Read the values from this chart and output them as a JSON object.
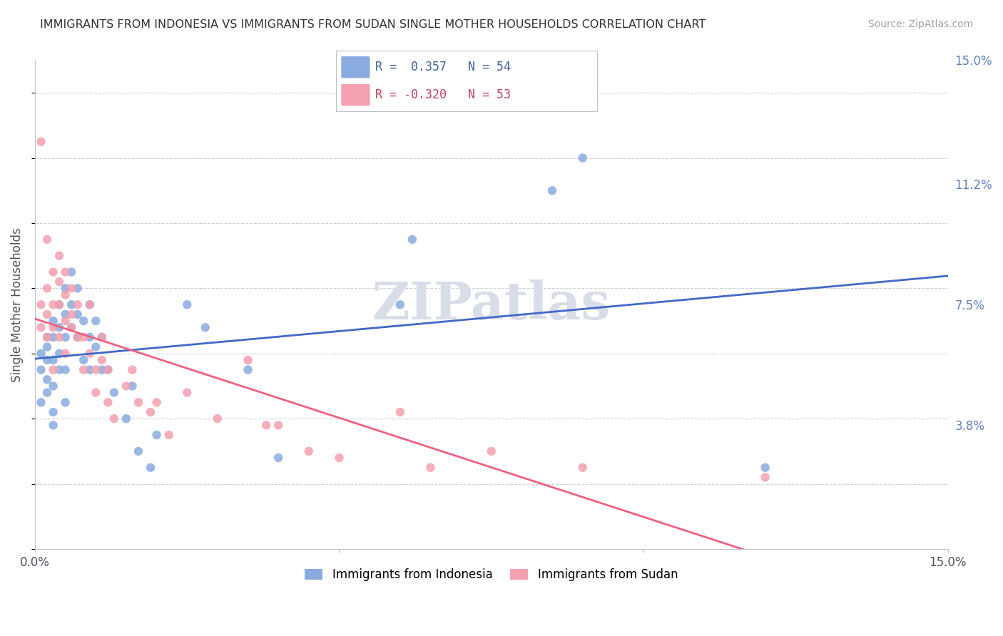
{
  "title": "IMMIGRANTS FROM INDONESIA VS IMMIGRANTS FROM SUDAN SINGLE MOTHER HOUSEHOLDS CORRELATION CHART",
  "source": "Source: ZipAtlas.com",
  "xlabel": "",
  "ylabel": "Single Mother Households",
  "xlim": [
    0,
    0.15
  ],
  "ylim": [
    0,
    0.15
  ],
  "ytick_positions": [
    0.038,
    0.075,
    0.112,
    0.15
  ],
  "ytick_labels": [
    "3.8%",
    "7.5%",
    "11.2%",
    "15.0%"
  ],
  "watermark": "ZIPatlas",
  "indonesia_color": "#8aabdf",
  "sudan_color": "#f4a0b0",
  "indonesia_line_color": "#4169c8",
  "sudan_line_color": "#f06080",
  "background_color": "#ffffff",
  "grid_color": "#d0d0d8",
  "title_color": "#303030",
  "source_color": "#a0a0b0",
  "axis_label_color": "#505060",
  "right_tick_color": "#6080c0",
  "watermark_color": "#d8dde8",
  "r_indonesia": "0.357",
  "n_indonesia": "54",
  "r_sudan": "-0.320",
  "n_sudan": "53",
  "legend_label_indonesia": "Immigrants from Indonesia",
  "legend_label_sudan": "Immigrants from Sudan",
  "indonesia_x": [
    0.001,
    0.001,
    0.001,
    0.002,
    0.002,
    0.002,
    0.002,
    0.002,
    0.003,
    0.003,
    0.003,
    0.003,
    0.003,
    0.003,
    0.004,
    0.004,
    0.004,
    0.004,
    0.005,
    0.005,
    0.005,
    0.005,
    0.005,
    0.006,
    0.006,
    0.006,
    0.007,
    0.007,
    0.007,
    0.008,
    0.008,
    0.009,
    0.009,
    0.009,
    0.01,
    0.01,
    0.011,
    0.011,
    0.012,
    0.013,
    0.015,
    0.016,
    0.017,
    0.019,
    0.02,
    0.025,
    0.028,
    0.035,
    0.04,
    0.06,
    0.062,
    0.085,
    0.09,
    0.12
  ],
  "indonesia_y": [
    0.055,
    0.06,
    0.045,
    0.062,
    0.058,
    0.052,
    0.065,
    0.048,
    0.07,
    0.065,
    0.058,
    0.05,
    0.042,
    0.038,
    0.075,
    0.068,
    0.06,
    0.055,
    0.08,
    0.072,
    0.065,
    0.055,
    0.045,
    0.085,
    0.075,
    0.068,
    0.08,
    0.072,
    0.065,
    0.07,
    0.058,
    0.075,
    0.065,
    0.055,
    0.07,
    0.062,
    0.065,
    0.055,
    0.055,
    0.048,
    0.04,
    0.05,
    0.03,
    0.025,
    0.035,
    0.075,
    0.068,
    0.055,
    0.028,
    0.075,
    0.095,
    0.11,
    0.12,
    0.025
  ],
  "sudan_x": [
    0.001,
    0.001,
    0.001,
    0.002,
    0.002,
    0.002,
    0.002,
    0.003,
    0.003,
    0.003,
    0.003,
    0.004,
    0.004,
    0.004,
    0.004,
    0.005,
    0.005,
    0.005,
    0.005,
    0.006,
    0.006,
    0.006,
    0.007,
    0.007,
    0.008,
    0.008,
    0.009,
    0.009,
    0.01,
    0.01,
    0.011,
    0.011,
    0.012,
    0.012,
    0.013,
    0.015,
    0.016,
    0.017,
    0.019,
    0.02,
    0.022,
    0.025,
    0.03,
    0.035,
    0.038,
    0.04,
    0.045,
    0.05,
    0.06,
    0.065,
    0.075,
    0.09,
    0.12
  ],
  "sudan_y": [
    0.075,
    0.068,
    0.125,
    0.095,
    0.08,
    0.072,
    0.065,
    0.085,
    0.075,
    0.068,
    0.055,
    0.09,
    0.082,
    0.075,
    0.065,
    0.085,
    0.078,
    0.07,
    0.06,
    0.08,
    0.072,
    0.068,
    0.075,
    0.065,
    0.065,
    0.055,
    0.075,
    0.06,
    0.055,
    0.048,
    0.065,
    0.058,
    0.055,
    0.045,
    0.04,
    0.05,
    0.055,
    0.045,
    0.042,
    0.045,
    0.035,
    0.048,
    0.04,
    0.058,
    0.038,
    0.038,
    0.03,
    0.028,
    0.042,
    0.025,
    0.03,
    0.025,
    0.022
  ]
}
